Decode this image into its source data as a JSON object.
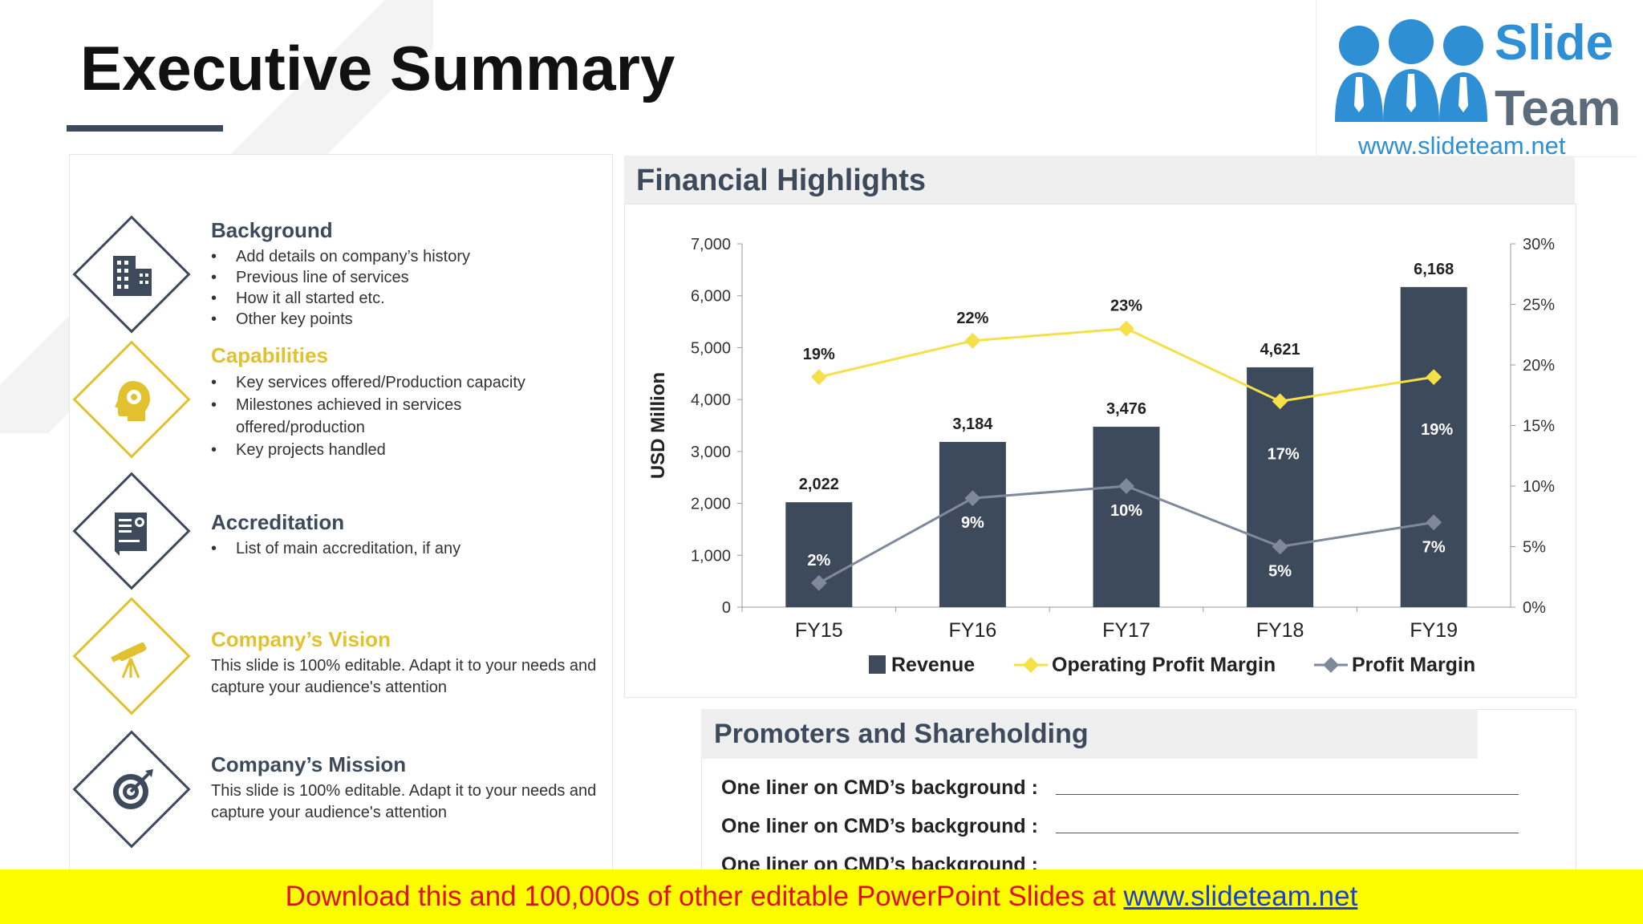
{
  "title": "Executive Summary",
  "logo": {
    "word1": "Slide",
    "word2": "Team",
    "url": "www.slideteam.net"
  },
  "sections": [
    {
      "title": "Background",
      "icon": "building-icon",
      "bullets": [
        "Add details on company’s history",
        "Previous line of services",
        "How it all started etc.",
        "Other key points"
      ]
    },
    {
      "title": "Capabilities",
      "icon": "head-gears-icon",
      "bullets": [
        "Key services offered/Production capacity",
        "Milestones achieved in services offered/production",
        "Key projects handled"
      ]
    },
    {
      "title": "Accreditation",
      "icon": "certificate-icon",
      "bullets": [
        "List of main accreditation, if any"
      ]
    },
    {
      "title": "Company’s Vision",
      "icon": "telescope-icon",
      "text": "This slide is 100% editable. Adapt it to your needs and capture your audience's attention"
    },
    {
      "title": "Company’s Mission",
      "icon": "target-icon",
      "text": "This slide is 100% editable. Adapt it to your needs and capture your audience's attention"
    }
  ],
  "financial": {
    "header": "Financial Highlights"
  },
  "chart_data": {
    "type": "bar",
    "categories": [
      "FY15",
      "FY16",
      "FY17",
      "FY18",
      "FY19"
    ],
    "ylabel": "USD Million",
    "ylim": [
      0,
      7000
    ],
    "y_ticks": [
      "0",
      "1,000",
      "2,000",
      "3,000",
      "4,000",
      "5,000",
      "6,000",
      "7,000"
    ],
    "y2lim": [
      0,
      30
    ],
    "y2_ticks": [
      "0%",
      "5%",
      "10%",
      "15%",
      "20%",
      "25%",
      "30%"
    ],
    "legend_position": "bottom",
    "series": [
      {
        "name": "Revenue",
        "type": "bar",
        "color": "#3d4a5b",
        "values": [
          2022,
          3184,
          3476,
          4621,
          6168
        ],
        "labels": [
          "2,022",
          "3,184",
          "3,476",
          "4,621",
          "6,168"
        ]
      },
      {
        "name": "Operating Profit Margin",
        "type": "line",
        "axis": "right",
        "color": "#f5e04a",
        "values": [
          19,
          22,
          23,
          17,
          19
        ],
        "labels": [
          "19%",
          "22%",
          "23%",
          "17%",
          "19%"
        ]
      },
      {
        "name": "Profit Margin",
        "type": "line",
        "axis": "right",
        "color": "#7e8a9c",
        "values": [
          2,
          9,
          10,
          5,
          7
        ],
        "labels": [
          "2%",
          "9%",
          "10%",
          "5%",
          "7%"
        ]
      }
    ]
  },
  "promoters": {
    "header": "Promoters and Shareholding",
    "lines": [
      "One liner on CMD’s background :",
      "One liner on CMD’s background :",
      "One liner on CMD’s background :"
    ]
  },
  "banner": {
    "text": "Download this and 100,000s of other editable PowerPoint Slides at ",
    "link": "www.slideteam.net"
  }
}
